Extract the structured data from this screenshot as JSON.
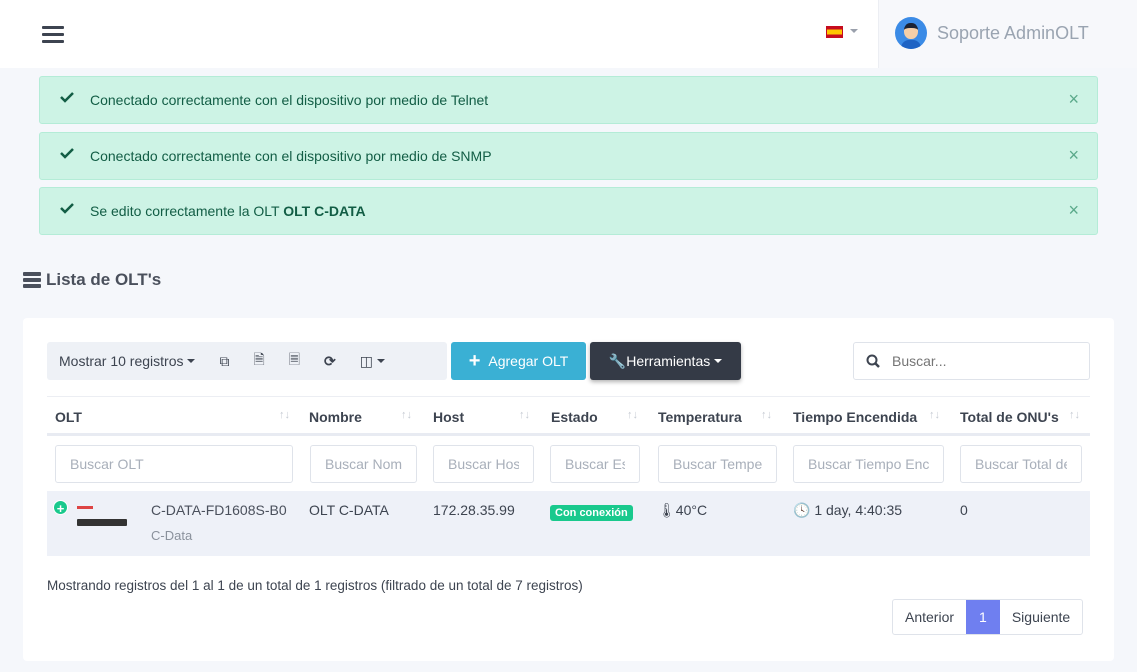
{
  "header": {
    "user_name": "Soporte AdminOLT",
    "language": "es"
  },
  "alerts": [
    {
      "text": "Conectado correctamente con el dispositivo por medio de Telnet",
      "bold": ""
    },
    {
      "text": "Conectado correctamente con el dispositivo por medio de SNMP",
      "bold": ""
    },
    {
      "text": "Se edito correctamente la OLT ",
      "bold": "OLT C-DATA"
    }
  ],
  "page_title": "Lista de OLT's",
  "toolbar": {
    "show_label": "Mostrar 10 registros",
    "add_label": "Agregar OLT",
    "tools_label": "Herramientas",
    "search_placeholder": "Buscar..."
  },
  "columns": [
    "OLT",
    "Nombre",
    "Host",
    "Estado",
    "Temperatura",
    "Tiempo Encendida",
    "Total de ONU's"
  ],
  "filters": [
    "Buscar OLT",
    "Buscar Nombre",
    "Buscar Host",
    "Buscar Estado",
    "Buscar Temperatura",
    "Buscar Tiempo Encendida",
    "Buscar Total de ONU's"
  ],
  "rows": [
    {
      "model": "C-DATA-FD1608S-B0",
      "brand": "C-Data",
      "name": "OLT C-DATA",
      "host": "172.28.35.99",
      "status": "Con conexión",
      "temperature": "40°C",
      "uptime": "1 day, 4:40:35",
      "onus": "0"
    }
  ],
  "footer": {
    "info": "Mostrando registros del 1 al 1 de un total de 1 registros (filtrado de un total de 7 registros)",
    "prev": "Anterior",
    "page": "1",
    "next": "Siguiente"
  },
  "colors": {
    "success_alert": "#cdf3e5",
    "info_button": "#3ab0d4",
    "dark_button": "#343a46",
    "status_badge": "#19c98d",
    "active_page": "#6f7ff0"
  }
}
